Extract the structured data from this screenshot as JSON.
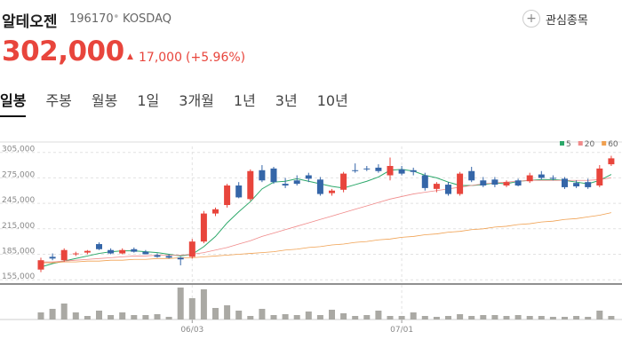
{
  "header": {
    "name": "알테오젠",
    "code": "196170",
    "market": "KOSDAQ",
    "price": "302,000",
    "change": "17,000",
    "change_percent": "(+5.96%)",
    "watchlist": "관심종목"
  },
  "tabs": {
    "items": [
      "일봉",
      "주봉",
      "월봉",
      "1일",
      "3개월",
      "1년",
      "3년",
      "10년"
    ],
    "selected": 0
  },
  "chart_data": {
    "type": "candlestick",
    "categories": [
      null,
      null,
      null,
      null,
      null,
      null,
      null,
      null,
      null,
      null,
      null,
      null,
      null,
      "06/03",
      null,
      null,
      null,
      null,
      null,
      null,
      null,
      null,
      null,
      null,
      null,
      null,
      null,
      null,
      null,
      null,
      null,
      "07/01",
      null,
      null,
      null,
      null,
      null,
      null,
      null,
      null,
      null,
      null,
      null,
      null,
      null,
      null,
      null,
      null,
      null,
      null
    ],
    "open": [
      167000,
      182000,
      178000,
      185000,
      187000,
      197000,
      190000,
      186000,
      191000,
      188000,
      184000,
      183000,
      181000,
      182000,
      200000,
      233000,
      243000,
      266000,
      250000,
      284000,
      286000,
      268000,
      272000,
      278000,
      273000,
      257000,
      261000,
      284000,
      286000,
      287000,
      278000,
      285000,
      284000,
      278000,
      262000,
      267000,
      256000,
      283000,
      272000,
      273000,
      266000,
      272000,
      271000,
      279000,
      275000,
      274000,
      269000,
      270000,
      266000,
      291000
    ],
    "high": [
      181000,
      186000,
      192000,
      188000,
      190000,
      199000,
      192000,
      192000,
      193000,
      190000,
      186000,
      185000,
      182000,
      203000,
      236000,
      240000,
      268000,
      270000,
      285000,
      290000,
      288000,
      275000,
      278000,
      281000,
      276000,
      262000,
      282000,
      292000,
      289000,
      291000,
      299000,
      289000,
      287000,
      281000,
      270000,
      270000,
      282000,
      288000,
      276000,
      276000,
      272000,
      274000,
      281000,
      283000,
      278000,
      276000,
      272000,
      274000,
      290000,
      301000
    ],
    "low": [
      164000,
      178000,
      176000,
      183000,
      185000,
      190000,
      185000,
      185000,
      187000,
      185000,
      181000,
      180000,
      172000,
      180000,
      198000,
      230000,
      240000,
      251000,
      248000,
      270000,
      268000,
      263000,
      266000,
      270000,
      254000,
      254000,
      258000,
      281000,
      283000,
      281000,
      272000,
      278000,
      278000,
      260000,
      258000,
      254000,
      254000,
      270000,
      264000,
      264000,
      264000,
      265000,
      269000,
      273000,
      272000,
      262000,
      263000,
      262000,
      264000,
      289000
    ],
    "close": [
      178000,
      180000,
      190000,
      186000,
      189000,
      191000,
      186000,
      190000,
      188000,
      185000,
      182000,
      181000,
      179000,
      200000,
      233000,
      238000,
      266000,
      252000,
      283000,
      272000,
      270000,
      266000,
      268000,
      274000,
      256000,
      260000,
      280000,
      283000,
      285000,
      283000,
      289000,
      280000,
      282000,
      263000,
      268000,
      256000,
      280000,
      272000,
      266000,
      267000,
      270000,
      266000,
      278000,
      275000,
      274000,
      264000,
      265000,
      264000,
      286000,
      298000
    ],
    "up_color": "#e8453c",
    "down_color": "#3566a8",
    "ylim": [
      150000,
      312000
    ],
    "yticks": [
      {
        "value": 155000,
        "label": "155,000"
      },
      {
        "value": 185000,
        "label": "185,000"
      },
      {
        "value": 215000,
        "label": "215,000"
      },
      {
        "value": 245000,
        "label": "245,000"
      },
      {
        "value": 275000,
        "label": "275,000"
      },
      {
        "value": 305000,
        "label": "305,000"
      }
    ],
    "grid": true,
    "legend": "top-right",
    "series": [
      {
        "name": "5",
        "color": "#2ca86a",
        "values": [
          170000,
          174000,
          177000,
          180000,
          183000,
          186000,
          188000,
          189000,
          189000,
          188000,
          187000,
          185000,
          183000,
          185000,
          194000,
          206000,
          222000,
          235000,
          247000,
          262000,
          270000,
          271000,
          274000,
          271000,
          268000,
          265000,
          263000,
          267000,
          271000,
          276000,
          284000,
          285000,
          283000,
          278000,
          275000,
          270000,
          266000,
          266000,
          267000,
          269000,
          268000,
          271000,
          272000,
          273000,
          273000,
          272000,
          270000,
          268000,
          272000,
          279000
        ]
      },
      {
        "name": "20",
        "color": "#f08a8a",
        "values": [
          176000,
          176000,
          177000,
          178000,
          179000,
          180000,
          181000,
          182000,
          183000,
          183000,
          184000,
          184000,
          184000,
          185000,
          187000,
          190000,
          193000,
          197000,
          201000,
          206000,
          210000,
          214000,
          218000,
          222000,
          226000,
          230000,
          234000,
          238000,
          242000,
          246000,
          250000,
          253000,
          256000,
          258000,
          260000,
          262000,
          264000,
          266000,
          268000,
          269000,
          270000,
          271000,
          272000,
          272000,
          272000,
          272000,
          272000,
          272000,
          273000,
          275000
        ]
      },
      {
        "name": "60",
        "color": "#f0a050",
        "values": [
          175000,
          175000,
          176000,
          176000,
          177000,
          177000,
          178000,
          178000,
          179000,
          179000,
          180000,
          180000,
          181000,
          181000,
          182000,
          183000,
          184000,
          185000,
          186000,
          187000,
          188000,
          190000,
          191000,
          193000,
          194000,
          196000,
          197000,
          199000,
          200000,
          202000,
          203000,
          205000,
          206000,
          208000,
          209000,
          211000,
          212000,
          214000,
          215000,
          217000,
          218000,
          220000,
          221000,
          223000,
          224000,
          226000,
          227000,
          229000,
          231000,
          234000
        ]
      }
    ],
    "volume": {
      "color": "#aaa9a4",
      "ylim": [
        0,
        40
      ],
      "values": [
        8,
        12,
        18,
        8,
        4,
        10,
        5,
        8,
        5,
        5,
        6,
        3,
        36,
        24,
        34,
        13,
        16,
        10,
        4,
        12,
        5,
        6,
        5,
        9,
        5,
        11,
        7,
        4,
        5,
        10,
        4,
        4,
        8,
        4,
        3,
        4,
        6,
        4,
        5,
        5,
        4,
        5,
        4,
        4,
        3,
        3,
        4,
        3,
        10,
        4
      ]
    }
  }
}
